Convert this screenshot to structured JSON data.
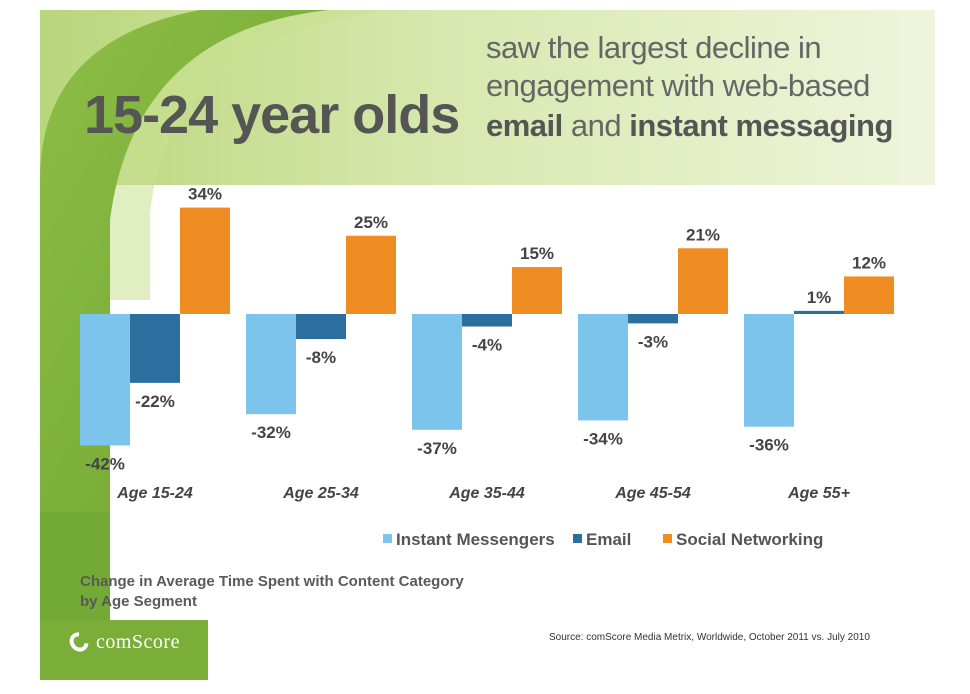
{
  "header": {
    "title": "15-24 year olds",
    "subtitle_line1": "saw the largest decline in",
    "subtitle_line2": "engagement with web-based",
    "subtitle_line3_bold1": "email",
    "subtitle_line3_mid": " and ",
    "subtitle_line3_bold2": "instant messaging"
  },
  "chart_data": {
    "type": "bar",
    "title": "Change in Average Time Spent with Content Category by Age Segment",
    "categories": [
      "Age 15-24",
      "Age 25-34",
      "Age 35-44",
      "Age 45-54",
      "Age 55+"
    ],
    "series": [
      {
        "name": "Instant Messengers",
        "color": "#7cc4ec",
        "values": [
          -42,
          -32,
          -37,
          -34,
          -36
        ]
      },
      {
        "name": "Email",
        "color": "#2c6f9e",
        "values": [
          -22,
          -8,
          -4,
          -3,
          1
        ]
      },
      {
        "name": "Social Networking",
        "color": "#ef8c22",
        "values": [
          34,
          25,
          15,
          21,
          12
        ]
      }
    ],
    "value_suffix": "%",
    "ylim": [
      -45,
      36
    ],
    "legend": "bottom",
    "grid": false
  },
  "caption": {
    "line1": "Change in Average Time Spent with Content Category",
    "line2": "by Age Segment"
  },
  "source": "Source: comScore Media Metrix, Worldwide, October 2011 vs. July 2010",
  "logo": {
    "text": "comScore"
  },
  "colors": {
    "green_dark": "#6ea52f",
    "green_mid": "#9cc654",
    "green_light": "#e7f0cf",
    "title_gray": "#555555"
  }
}
